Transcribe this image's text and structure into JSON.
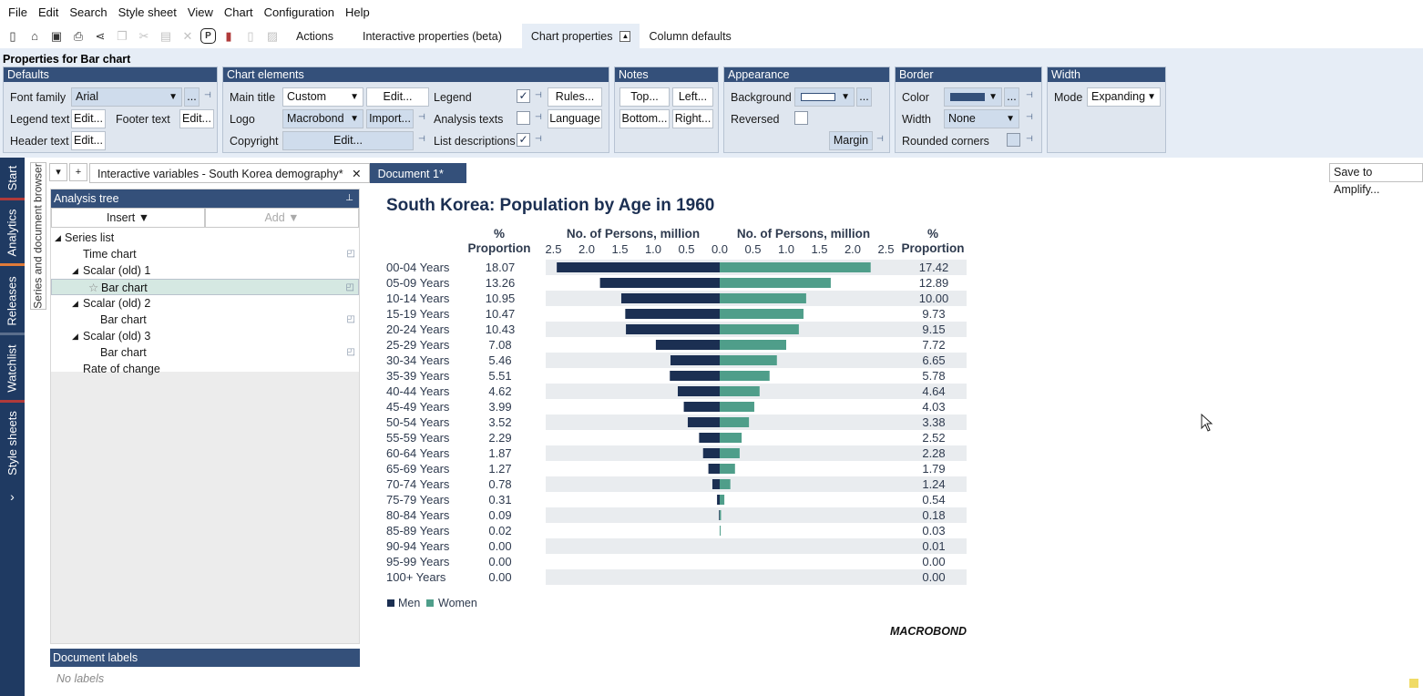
{
  "menu": [
    "File",
    "Edit",
    "Search",
    "Style sheet",
    "View",
    "Chart",
    "Configuration",
    "Help"
  ],
  "toolbar": {
    "tabs": [
      "Actions",
      "Interactive properties (beta)",
      "Chart properties",
      "Column defaults"
    ],
    "icons": [
      "new-icon",
      "open-icon",
      "save-icon",
      "print-icon",
      "share-icon",
      "copy-icon",
      "cut-icon",
      "paste-icon",
      "delete-icon",
      "presentation-icon",
      "chart-type-icon",
      "page-icon",
      "image-icon"
    ]
  },
  "props": {
    "title": "Properties for Bar chart",
    "defaults": {
      "head": "Defaults",
      "font_family_label": "Font family",
      "font_family_value": "Arial",
      "more": "...",
      "legend_text_label": "Legend text",
      "footer_text_label": "Footer text",
      "header_text_label": "Header text",
      "edit": "Edit..."
    },
    "elements": {
      "head": "Chart elements",
      "main_title_label": "Main title",
      "main_title_value": "Custom",
      "edit": "Edit...",
      "logo_label": "Logo",
      "logo_value": "Macrobond",
      "import": "Import...",
      "copyright_label": "Copyright",
      "copyright_edit": "Edit...",
      "legend_label": "Legend",
      "rules": "Rules...",
      "analysis_texts_label": "Analysis texts",
      "language": "Language",
      "list_desc_label": "List descriptions"
    },
    "notes": {
      "head": "Notes",
      "top": "Top...",
      "left": "Left...",
      "bottom": "Bottom...",
      "right": "Right..."
    },
    "appearance": {
      "head": "Appearance",
      "background_label": "Background",
      "reversed_label": "Reversed",
      "margin": "Margin",
      "more": "..."
    },
    "border": {
      "head": "Border",
      "color_label": "Color",
      "width_label": "Width",
      "width_value": "None",
      "rounded_label": "Rounded corners",
      "more": "..."
    },
    "width": {
      "head": "Width",
      "mode_label": "Mode",
      "mode_value": "Expanding"
    }
  },
  "sidebar": {
    "tabs": [
      "Start",
      "Analytics",
      "Releases",
      "Watchlist",
      "Style sheets"
    ],
    "accent": "#e07b39"
  },
  "browser_tab": "Series and document browser",
  "doc_tabs": {
    "dropdown": "▾",
    "add": "+",
    "tab1": "Interactive variables - South Korea demography*",
    "close": "✕",
    "tab2": "Document 1*"
  },
  "amplify": "Save to Amplify...",
  "analysis": {
    "head": "Analysis tree",
    "insert": "Insert",
    "add": "Add",
    "items": [
      "Series list",
      "Time chart",
      "Scalar (old) 1",
      "Bar chart",
      "Scalar (old) 2",
      "Bar chart",
      "Scalar (old) 3",
      "Bar chart",
      "Rate of change"
    ]
  },
  "doc_labels": {
    "head": "Document labels",
    "empty": "No labels"
  },
  "chart_data": {
    "type": "bar",
    "title": "South Korea: Population by Age in 1960",
    "left_header": [
      "%",
      "Proportion"
    ],
    "right_header": [
      "%",
      "Proportion"
    ],
    "xlabel_left": "No. of Persons, million",
    "xlabel_right": "No. of Persons, million",
    "xlim": [
      0,
      2.5
    ],
    "xticks_left": [
      "2.5",
      "2.0",
      "1.5",
      "1.0",
      "0.5",
      "0.0"
    ],
    "xticks_right": [
      "0.0",
      "0.5",
      "1.0",
      "1.5",
      "2.0",
      "2.5"
    ],
    "categories": [
      "00-04 Years",
      "05-09 Years",
      "10-14 Years",
      "15-19 Years",
      "20-24 Years",
      "25-29 Years",
      "30-34 Years",
      "35-39 Years",
      "40-44 Years",
      "45-49 Years",
      "50-54 Years",
      "55-59 Years",
      "60-64 Years",
      "65-69 Years",
      "70-74 Years",
      "75-79 Years",
      "80-84 Years",
      "85-89 Years",
      "90-94 Years",
      "95-99 Years",
      "100+ Years"
    ],
    "men_pct": [
      "18.07",
      "13.26",
      "10.95",
      "10.47",
      "10.43",
      "7.08",
      "5.46",
      "5.51",
      "4.62",
      "3.99",
      "3.52",
      "2.29",
      "1.87",
      "1.27",
      "0.78",
      "0.31",
      "0.09",
      "0.02",
      "0.00",
      "0.00",
      "0.00"
    ],
    "women_pct": [
      "17.42",
      "12.89",
      "10.00",
      "9.73",
      "9.15",
      "7.72",
      "6.65",
      "5.78",
      "4.64",
      "4.03",
      "3.38",
      "2.52",
      "2.28",
      "1.79",
      "1.24",
      "0.54",
      "0.18",
      "0.03",
      "0.01",
      "0.00",
      "0.00"
    ],
    "series": [
      {
        "name": "Men",
        "color": "#1b2f52",
        "values": [
          2.45,
          1.8,
          1.48,
          1.42,
          1.41,
          0.96,
          0.74,
          0.75,
          0.63,
          0.54,
          0.48,
          0.31,
          0.25,
          0.17,
          0.11,
          0.04,
          0.01,
          0.0,
          0.0,
          0.0,
          0.0
        ]
      },
      {
        "name": "Women",
        "color": "#4f9e8a",
        "values": [
          2.27,
          1.67,
          1.3,
          1.26,
          1.19,
          1.0,
          0.86,
          0.75,
          0.6,
          0.52,
          0.44,
          0.33,
          0.3,
          0.23,
          0.16,
          0.07,
          0.02,
          0.0,
          0.0,
          0.0,
          0.0
        ]
      }
    ],
    "logo": "MACROBOND",
    "grid": false,
    "legend_position": "bottom-left"
  }
}
